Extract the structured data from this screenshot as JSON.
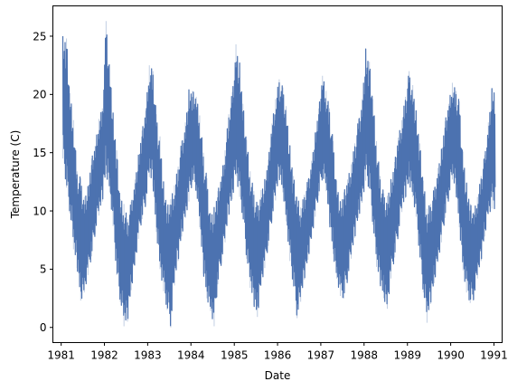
{
  "chart_data": {
    "type": "line",
    "title": "",
    "xlabel": "Date",
    "ylabel": "Temperature (C)",
    "xlim": [
      "1980-10-23",
      "1991-03-11"
    ],
    "ylim": [
      -1.3,
      27.6
    ],
    "x_ticks": [
      "1981",
      "1982",
      "1983",
      "1984",
      "1985",
      "1986",
      "1987",
      "1988",
      "1989",
      "1990",
      "1991"
    ],
    "y_ticks": [
      0,
      5,
      10,
      15,
      20,
      25
    ],
    "grid": false,
    "legend": "none",
    "color": "#4c72b0",
    "series": [
      {
        "x": [
          "1981-01-15",
          "1981-02-15",
          "1981-03-15",
          "1981-04-15",
          "1981-05-15",
          "1981-06-15",
          "1981-07-15",
          "1981-08-15",
          "1981-09-15",
          "1981-10-15",
          "1981-11-15",
          "1981-12-15",
          "1982-01-15",
          "1982-02-15",
          "1982-03-15",
          "1982-04-15",
          "1982-05-15",
          "1982-06-15",
          "1982-07-15",
          "1982-08-15",
          "1982-09-15",
          "1982-10-15",
          "1982-11-15",
          "1982-12-15",
          "1983-01-15",
          "1983-02-15",
          "1983-03-15",
          "1983-04-15",
          "1983-05-15",
          "1983-06-15",
          "1983-07-15",
          "1983-08-15",
          "1983-09-15",
          "1983-10-15",
          "1983-11-15",
          "1983-12-15",
          "1984-01-15",
          "1984-02-15",
          "1984-03-15",
          "1984-04-15",
          "1984-05-15",
          "1984-06-15",
          "1984-07-15",
          "1984-08-15",
          "1984-09-15",
          "1984-10-15",
          "1984-11-15",
          "1984-12-15",
          "1985-01-15",
          "1985-02-15",
          "1985-03-15",
          "1985-04-15",
          "1985-05-15",
          "1985-06-15",
          "1985-07-15",
          "1985-08-15",
          "1985-09-15",
          "1985-10-15",
          "1985-11-15",
          "1985-12-15",
          "1986-01-15",
          "1986-02-15",
          "1986-03-15",
          "1986-04-15",
          "1986-05-15",
          "1986-06-15",
          "1986-07-15",
          "1986-08-15",
          "1986-09-15",
          "1986-10-15",
          "1986-11-15",
          "1986-12-15",
          "1987-01-15",
          "1987-02-15",
          "1987-03-15",
          "1987-04-15",
          "1987-05-15",
          "1987-06-15",
          "1987-07-15",
          "1987-08-15",
          "1987-09-15",
          "1987-10-15",
          "1987-11-15",
          "1987-12-15",
          "1988-01-15",
          "1988-02-15",
          "1988-03-15",
          "1988-04-15",
          "1988-05-15",
          "1988-06-15",
          "1988-07-15",
          "1988-08-15",
          "1988-09-15",
          "1988-10-15",
          "1988-11-15",
          "1988-12-15",
          "1989-01-15",
          "1989-02-15",
          "1989-03-15",
          "1989-04-15",
          "1989-05-15",
          "1989-06-15",
          "1989-07-15",
          "1989-08-15",
          "1989-09-15",
          "1989-10-15",
          "1989-11-15",
          "1989-12-15",
          "1990-01-15",
          "1990-02-15",
          "1990-03-15",
          "1990-04-15",
          "1990-05-15",
          "1990-06-15",
          "1990-07-15",
          "1990-08-15",
          "1990-09-15",
          "1990-10-15",
          "1990-11-15",
          "1990-12-15"
        ],
        "y_high": [
          25.0,
          24.8,
          20.1,
          17.8,
          13.4,
          12.8,
          11.2,
          12.1,
          14.5,
          15.6,
          17.9,
          18.8,
          26.3,
          22.6,
          18.4,
          15.2,
          11.0,
          10.6,
          9.3,
          10.8,
          12.7,
          14.8,
          16.9,
          18.6,
          22.5,
          22.0,
          18.3,
          16.4,
          12.5,
          10.4,
          11.0,
          12.2,
          13.8,
          16.0,
          17.6,
          20.4,
          20.3,
          19.8,
          18.2,
          15.0,
          12.8,
          9.8,
          10.3,
          11.7,
          13.0,
          15.2,
          18.3,
          20.2,
          24.3,
          22.7,
          19.2,
          16.1,
          13.4,
          11.7,
          10.5,
          11.8,
          12.7,
          14.4,
          17.5,
          19.6,
          21.3,
          20.6,
          19.0,
          15.6,
          13.0,
          11.2,
          10.3,
          11.4,
          12.7,
          14.3,
          16.7,
          18.8,
          21.6,
          20.3,
          18.8,
          16.0,
          12.6,
          10.8,
          11.6,
          12.7,
          14.0,
          15.8,
          17.9,
          19.6,
          23.9,
          22.8,
          19.6,
          16.0,
          13.0,
          11.5,
          11.3,
          12.7,
          14.2,
          16.3,
          17.8,
          19.8,
          22.0,
          20.8,
          18.6,
          15.8,
          12.6,
          10.2,
          10.6,
          12.0,
          13.7,
          15.3,
          17.7,
          19.2,
          21.0,
          20.3,
          19.4,
          15.1,
          12.4,
          10.6,
          9.9,
          11.2,
          13.0,
          14.8,
          17.6,
          20.5
        ],
        "y_low": [
          14.5,
          12.0,
          9.8,
          6.7,
          5.1,
          2.3,
          3.0,
          4.5,
          6.1,
          8.0,
          9.6,
          10.8,
          13.2,
          11.6,
          8.7,
          4.5,
          2.2,
          0.1,
          0.5,
          3.2,
          5.3,
          7.6,
          9.3,
          10.5,
          12.9,
          12.1,
          8.2,
          5.0,
          3.1,
          1.5,
          0.0,
          3.6,
          5.7,
          7.8,
          9.4,
          10.8,
          12.5,
          11.7,
          8.6,
          4.6,
          2.5,
          1.4,
          0.1,
          3.7,
          5.5,
          7.3,
          9.6,
          11.0,
          13.0,
          11.2,
          9.3,
          5.9,
          3.4,
          1.9,
          0.9,
          3.6,
          5.1,
          7.0,
          9.2,
          10.9,
          12.8,
          11.6,
          9.1,
          5.7,
          3.5,
          0.8,
          2.2,
          4.1,
          5.8,
          7.6,
          9.5,
          11.3,
          12.8,
          11.7,
          8.9,
          6.3,
          4.2,
          2.7,
          2.5,
          4.0,
          5.9,
          7.7,
          9.4,
          10.7,
          12.6,
          11.9,
          8.8,
          5.2,
          3.7,
          2.5,
          1.6,
          4.2,
          6.0,
          7.8,
          9.9,
          11.1,
          12.4,
          11.2,
          9.5,
          6.0,
          3.0,
          0.4,
          2.0,
          3.8,
          5.6,
          7.3,
          9.4,
          11.0,
          12.7,
          11.5,
          8.6,
          4.9,
          3.0,
          2.1,
          2.4,
          4.2,
          5.7,
          7.8,
          9.7,
          10.2
        ]
      }
    ]
  }
}
